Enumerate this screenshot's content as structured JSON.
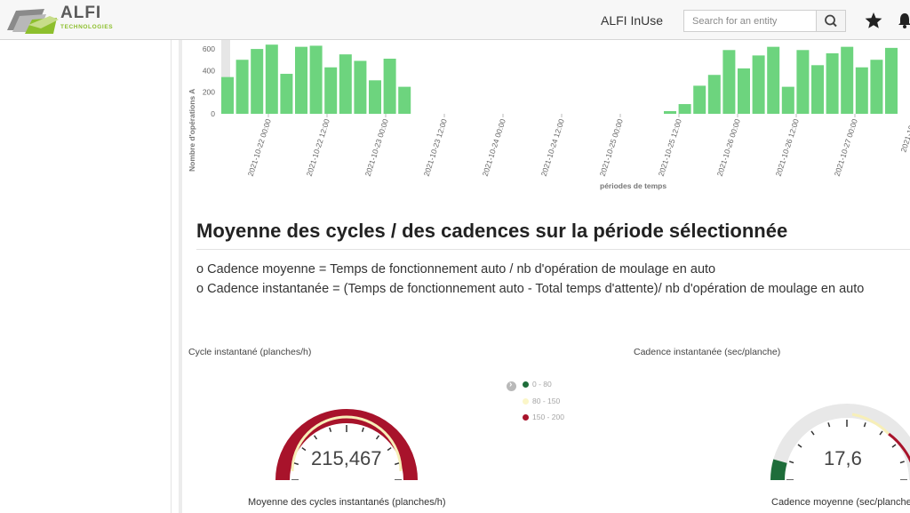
{
  "header": {
    "logo_text": "ALFI",
    "logo_subtext": "TECHNOLOGIES",
    "app_name": "ALFI InUse",
    "search_placeholder": "Search for an entity",
    "icons": {
      "search": "search-icon",
      "favorites": "star-icon",
      "notifications": "bell-icon"
    }
  },
  "chart_data": {
    "type": "bar",
    "ylabel": "Nombre d'opérations A",
    "xlabel": "périodes de temps",
    "ylim": [
      0,
      650
    ],
    "yticks": [
      0,
      200,
      400,
      600
    ],
    "bar_color": "#6dd47e",
    "xtick_labels": [
      "2021-10-22 00:00",
      "2021-10-22 12:00",
      "2021-10-23 00:00",
      "2021-10-23 12:00",
      "2021-10-24 00:00",
      "2021-10-24 12:00",
      "2021-10-25 00:00",
      "2021-10-25 12:00",
      "2021-10-26 00:00",
      "2021-10-26 12:00",
      "2021-10-27 00:00",
      "2021-10-2"
    ],
    "values": [
      340,
      500,
      600,
      640,
      370,
      620,
      630,
      430,
      550,
      490,
      310,
      510,
      250,
      0,
      0,
      0,
      0,
      0,
      0,
      0,
      0,
      0,
      0,
      0,
      0,
      0,
      0,
      0,
      0,
      0,
      25,
      90,
      260,
      360,
      590,
      420,
      540,
      620,
      250,
      590,
      450,
      560,
      620,
      430,
      500,
      610,
      0
    ]
  },
  "section": {
    "title": "Moyenne des cycles / des cadences sur la période sélectionnée",
    "formula_1": "o Cadence moyenne = Temps de fonctionnement auto / nb d'opération de moulage en auto",
    "formula_2": "o Cadence instantanée = (Temps de fonctionnement auto - Total temps d'attente)/ nb d'opération de moulage en auto"
  },
  "gauges": {
    "gauge1": {
      "title": "Cycle instantané (planches/h)",
      "value": "215,467",
      "caption": "Moyenne des cycles instantanés (planches/h)",
      "max": 200,
      "level": 1.0,
      "color": "#a8132b"
    },
    "gauge2": {
      "title": "Cadence instantanée (sec/planche)",
      "value": "17,6",
      "caption": "Cadence moyenne (sec/planche)",
      "max": 200,
      "level": 0.088,
      "color": "#1e6d3a"
    }
  },
  "legend": {
    "items": [
      {
        "label": "0 - 80",
        "color": "#1e6d3a"
      },
      {
        "label": "80 - 150",
        "color": "#fbf6c8"
      },
      {
        "label": "150 - 200",
        "color": "#a8132b"
      }
    ]
  }
}
